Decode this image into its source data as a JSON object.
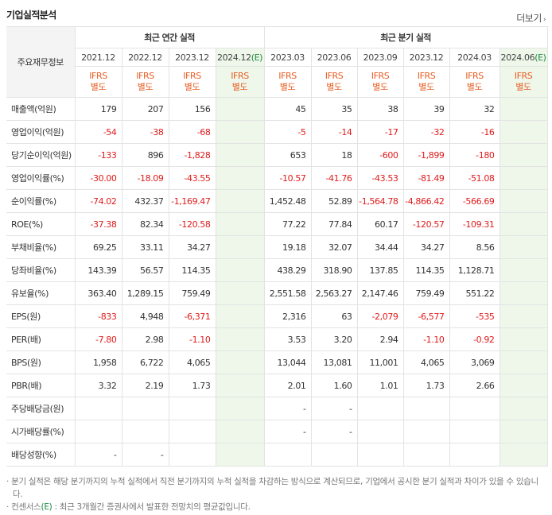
{
  "header": {
    "title": "기업실적분석",
    "more_label": "더보기"
  },
  "table": {
    "side_header": "주요재무정보",
    "groups": {
      "annual": "최근 연간 실적",
      "quarterly": "최근 분기 실적"
    },
    "est_mark": "(E)",
    "annual_periods": [
      "2021.12",
      "2022.12",
      "2023.12",
      "2024.12"
    ],
    "quarter_periods": [
      "2023.03",
      "2023.06",
      "2023.09",
      "2023.12",
      "2024.03",
      "2024.06"
    ],
    "ifrs_line1": "IFRS",
    "ifrs_line2": "별도",
    "rows": [
      {
        "label": "매출액(억원)",
        "values": [
          "179",
          "207",
          "156",
          "",
          "45",
          "35",
          "38",
          "39",
          "32",
          ""
        ]
      },
      {
        "label": "영업이익(억원)",
        "values": [
          "-54",
          "-38",
          "-68",
          "",
          "-5",
          "-14",
          "-17",
          "-32",
          "-16",
          ""
        ]
      },
      {
        "label": "당기순이익(억원)",
        "values": [
          "-133",
          "896",
          "-1,828",
          "",
          "653",
          "18",
          "-600",
          "-1,899",
          "-180",
          ""
        ]
      },
      {
        "label": "영업이익률(%)",
        "values": [
          "-30.00",
          "-18.09",
          "-43.55",
          "",
          "-10.57",
          "-41.76",
          "-43.53",
          "-81.49",
          "-51.08",
          ""
        ]
      },
      {
        "label": "순이익률(%)",
        "values": [
          "-74.02",
          "432.37",
          "-1,169.47",
          "",
          "1,452.48",
          "52.89",
          "-1,564.78",
          "-4,866.42",
          "-566.69",
          ""
        ]
      },
      {
        "label": "ROE(%)",
        "values": [
          "-37.38",
          "82.34",
          "-120.58",
          "",
          "77.22",
          "77.84",
          "60.17",
          "-120.57",
          "-109.31",
          ""
        ]
      },
      {
        "label": "부채비율(%)",
        "values": [
          "69.25",
          "33.11",
          "34.27",
          "",
          "19.18",
          "32.07",
          "34.44",
          "34.27",
          "8.56",
          ""
        ]
      },
      {
        "label": "당좌비율(%)",
        "values": [
          "143.39",
          "56.57",
          "114.35",
          "",
          "438.29",
          "318.90",
          "137.85",
          "114.35",
          "1,128.71",
          ""
        ]
      },
      {
        "label": "유보율(%)",
        "values": [
          "363.40",
          "1,289.15",
          "759.49",
          "",
          "2,551.58",
          "2,563.27",
          "2,147.46",
          "759.49",
          "551.22",
          ""
        ]
      },
      {
        "label": "EPS(원)",
        "values": [
          "-833",
          "4,948",
          "-6,371",
          "",
          "2,316",
          "63",
          "-2,079",
          "-6,577",
          "-535",
          ""
        ]
      },
      {
        "label": "PER(배)",
        "values": [
          "-7.80",
          "2.98",
          "-1.10",
          "",
          "3.53",
          "3.20",
          "2.94",
          "-1.10",
          "-0.92",
          ""
        ]
      },
      {
        "label": "BPS(원)",
        "values": [
          "1,958",
          "6,722",
          "4,065",
          "",
          "13,044",
          "13,081",
          "11,001",
          "4,065",
          "3,069",
          ""
        ]
      },
      {
        "label": "PBR(배)",
        "values": [
          "3.32",
          "2.19",
          "1.73",
          "",
          "2.01",
          "1.60",
          "1.01",
          "1.73",
          "2.66",
          ""
        ]
      },
      {
        "label": "주당배당금(원)",
        "values": [
          "",
          "",
          "",
          "",
          "-",
          "-",
          "",
          "",
          "",
          ""
        ]
      },
      {
        "label": "시가배당률(%)",
        "values": [
          "",
          "",
          "",
          "",
          "-",
          "-",
          "",
          "",
          "",
          ""
        ]
      },
      {
        "label": "배당성향(%)",
        "values": [
          "-",
          "-",
          "",
          "",
          "",
          "",
          "",
          "",
          "",
          ""
        ]
      }
    ]
  },
  "notes": {
    "line1": "분기 실적은 해당 분기까지의 누적 실적에서 직전 분기까지의 누적 실적을 차감하는 방식으로 계산되므로, 기업에서 공시한 분기 실적과 차이가 있을 수 있습니다.",
    "line2_prefix": "컨센서스",
    "line2_mark": "(E)",
    "line2_suffix": ": 최근 3개월간 증권사에서 발표한 전망치의 평균값입니다."
  },
  "colors": {
    "negative": "#e01b1b",
    "ifrs": "#e85d23",
    "estimate": "#1b8a3f",
    "estimate_bg": "#eef7ea"
  }
}
